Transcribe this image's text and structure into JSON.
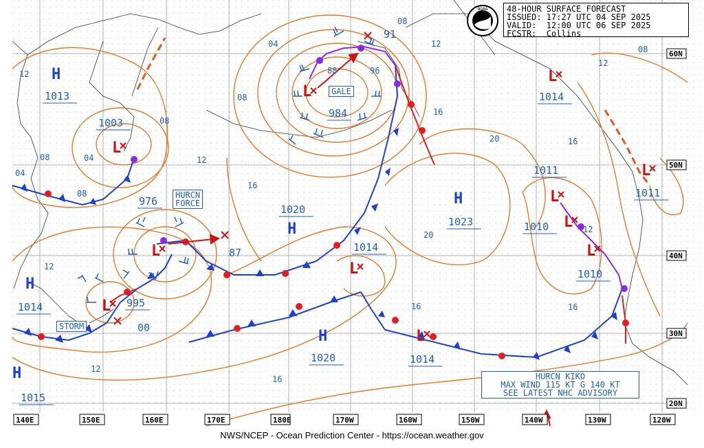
{
  "header": {
    "line1": "48-HOUR SURFACE FORECAST",
    "line2": "ISSUED: 17:27 UTC 04 SEP 2025",
    "line3": "VALID:  12:00 UTC 06 SEP 2025",
    "line4": "FCSTR:  Collins"
  },
  "footer": "NWS/NCEP - Ocean Prediction Center - https://ocean.weather.gov",
  "logo_label": "NOAA",
  "colors": {
    "isobar": "#e07a28",
    "text": "#1f5fbf",
    "cold_front": "#1f3fcf",
    "warm_front": "#e02020",
    "occluded": "#8a2be2",
    "grid": "#888888"
  },
  "lon_labels": [
    "140E",
    "150E",
    "160E",
    "170E",
    "180E",
    "170W",
    "160W",
    "150W",
    "140W",
    "130W",
    "120W"
  ],
  "lat_labels": [
    "60N",
    "50N",
    "40N",
    "30N",
    "20N"
  ],
  "highs": [
    {
      "id": "h1",
      "label": "H",
      "value": "1013"
    },
    {
      "id": "h2",
      "label": "H",
      "value": "1020"
    },
    {
      "id": "h3",
      "label": "H",
      "value": "1023"
    },
    {
      "id": "h4",
      "label": "H",
      "value": "1014"
    },
    {
      "id": "h5",
      "label": "H",
      "value": "1020"
    },
    {
      "id": "h6",
      "label": "H",
      "value": "1015"
    }
  ],
  "lows": [
    {
      "id": "l1",
      "value": "1003"
    },
    {
      "id": "l2",
      "value": "984"
    },
    {
      "id": "l3",
      "value": "1014"
    },
    {
      "id": "l4",
      "value": "1011"
    },
    {
      "id": "l5",
      "value": "976"
    },
    {
      "id": "l6",
      "value": "995"
    },
    {
      "id": "l7",
      "value": "1014"
    },
    {
      "id": "l8",
      "value": "1014"
    },
    {
      "id": "l9",
      "value": "1011"
    },
    {
      "id": "l10",
      "value": "1010"
    },
    {
      "id": "l11",
      "value": "1010"
    }
  ],
  "warnings": {
    "gale": "GALE",
    "hurcn_force_1": "HURCN",
    "hurcn_force_2": "FORCE",
    "storm": "STORM",
    "kiko_1": "HURCN KIKO",
    "kiko_2": "MAX WIND 115 KT G 140 KT",
    "kiko_3": "SEE LATEST NHC ADVISORY"
  },
  "isobar_labels": [
    {
      "id": "i1",
      "text": "12"
    },
    {
      "id": "i2",
      "text": "08"
    },
    {
      "id": "i3",
      "text": "04"
    },
    {
      "id": "i4",
      "text": "08"
    },
    {
      "id": "i5",
      "text": "04"
    },
    {
      "id": "i6",
      "text": "08"
    },
    {
      "id": "i7",
      "text": "04"
    },
    {
      "id": "i8",
      "text": "08"
    },
    {
      "id": "i9",
      "text": "88"
    },
    {
      "id": "i10",
      "text": "96"
    },
    {
      "id": "i11",
      "text": "91"
    },
    {
      "id": "i12",
      "text": "08"
    },
    {
      "id": "i13",
      "text": "12"
    },
    {
      "id": "i14",
      "text": "08"
    },
    {
      "id": "i15",
      "text": "12"
    },
    {
      "id": "i16",
      "text": "16"
    },
    {
      "id": "i17",
      "text": "12"
    },
    {
      "id": "i18",
      "text": "16"
    },
    {
      "id": "i19",
      "text": "20"
    },
    {
      "id": "i20",
      "text": "16"
    },
    {
      "id": "i21",
      "text": "20"
    },
    {
      "id": "i22",
      "text": "12"
    },
    {
      "id": "i23",
      "text": "87"
    },
    {
      "id": "i24",
      "text": "12"
    },
    {
      "id": "i25",
      "text": "00"
    },
    {
      "id": "i26",
      "text": "12"
    },
    {
      "id": "i27",
      "text": "16"
    },
    {
      "id": "i28",
      "text": "16"
    },
    {
      "id": "i29",
      "text": "16"
    }
  ]
}
